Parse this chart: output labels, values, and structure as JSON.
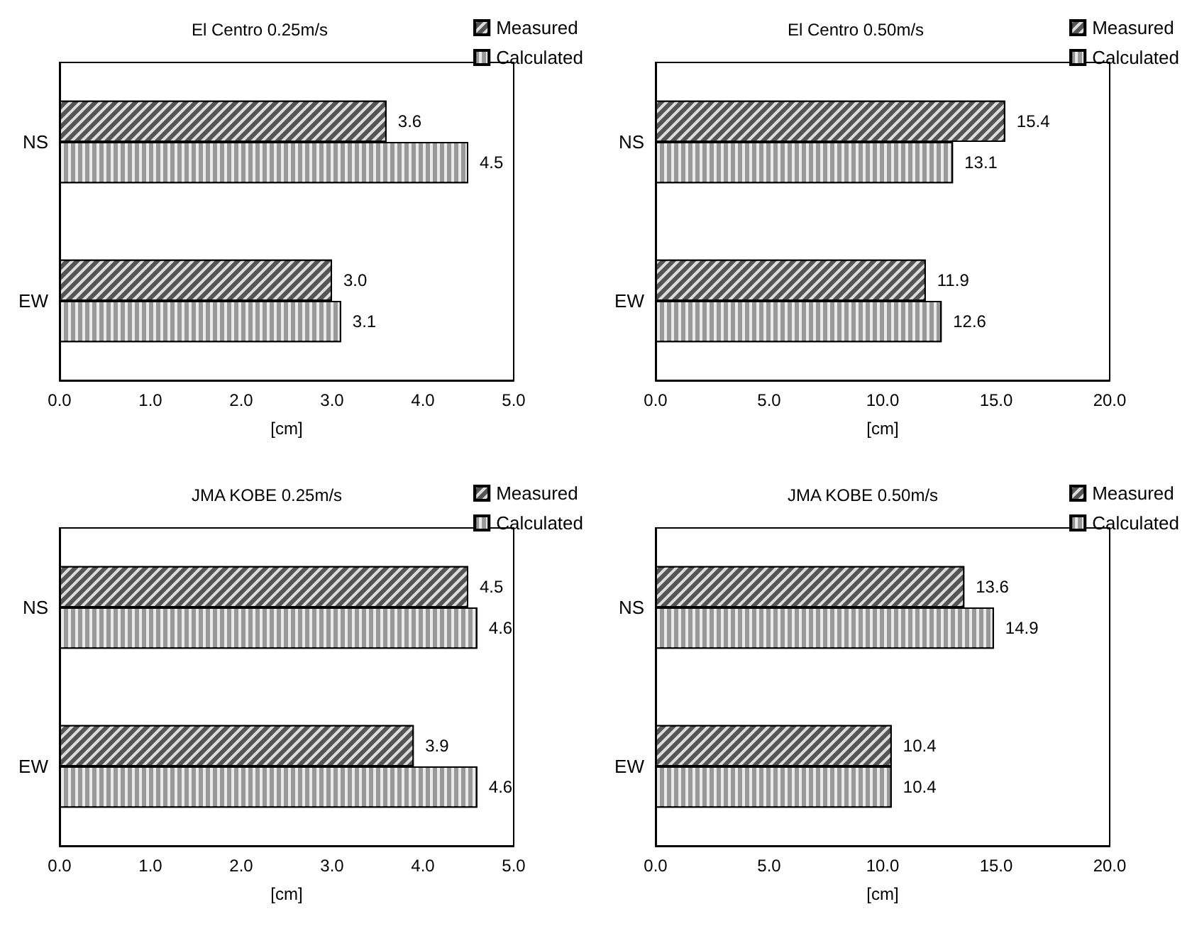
{
  "chart_data": [
    {
      "type": "bar",
      "orientation": "horizontal",
      "title": "El Centro 0.25m/s",
      "xlabel": "[cm]",
      "categories": [
        "NS",
        "EW"
      ],
      "xlim": [
        0,
        5
      ],
      "xticks": [
        {
          "value": 0,
          "label": "0.0"
        },
        {
          "value": 1,
          "label": "1.0"
        },
        {
          "value": 2,
          "label": "2.0"
        },
        {
          "value": 3,
          "label": "3.0"
        },
        {
          "value": 4,
          "label": "4.0"
        },
        {
          "value": 5,
          "label": "5.0"
        }
      ],
      "legend": "top right",
      "grid": false,
      "series": [
        {
          "name": "Measured",
          "color": "#555555",
          "values": [
            3.6,
            3.0
          ],
          "value_labels": [
            "3.6",
            "3.0"
          ]
        },
        {
          "name": "Calculated",
          "color": "#999999",
          "values": [
            4.5,
            3.1
          ],
          "value_labels": [
            "4.5",
            "3.1"
          ]
        }
      ]
    },
    {
      "type": "bar",
      "orientation": "horizontal",
      "title": "El Centro 0.50m/s",
      "xlabel": "[cm]",
      "categories": [
        "NS",
        "EW"
      ],
      "xlim": [
        0,
        20
      ],
      "xticks": [
        {
          "value": 0,
          "label": "0.0"
        },
        {
          "value": 5,
          "label": "5.0"
        },
        {
          "value": 10,
          "label": "10.0"
        },
        {
          "value": 15,
          "label": "15.0"
        },
        {
          "value": 20,
          "label": "20.0"
        }
      ],
      "legend": "top right",
      "grid": false,
      "series": [
        {
          "name": "Measured",
          "color": "#555555",
          "values": [
            15.4,
            11.9
          ],
          "value_labels": [
            "15.4",
            "11.9"
          ]
        },
        {
          "name": "Calculated",
          "color": "#999999",
          "values": [
            13.1,
            12.6
          ],
          "value_labels": [
            "13.1",
            "12.6"
          ]
        }
      ]
    },
    {
      "type": "bar",
      "orientation": "horizontal",
      "title": "JMA KOBE 0.25m/s",
      "xlabel": "[cm]",
      "categories": [
        "NS",
        "EW"
      ],
      "xlim": [
        0,
        5
      ],
      "xticks": [
        {
          "value": 0,
          "label": "0.0"
        },
        {
          "value": 1,
          "label": "1.0"
        },
        {
          "value": 2,
          "label": "2.0"
        },
        {
          "value": 3,
          "label": "3.0"
        },
        {
          "value": 4,
          "label": "4.0"
        },
        {
          "value": 5,
          "label": "5.0"
        }
      ],
      "legend": "top right",
      "grid": false,
      "series": [
        {
          "name": "Measured",
          "color": "#555555",
          "values": [
            4.5,
            3.9
          ],
          "value_labels": [
            "4.5",
            "3.9"
          ]
        },
        {
          "name": "Calculated",
          "color": "#999999",
          "values": [
            4.6,
            4.6
          ],
          "value_labels": [
            "4.6",
            "4.6"
          ]
        }
      ]
    },
    {
      "type": "bar",
      "orientation": "horizontal",
      "title": "JMA KOBE 0.50m/s",
      "xlabel": "[cm]",
      "categories": [
        "NS",
        "EW"
      ],
      "xlim": [
        0,
        20
      ],
      "xticks": [
        {
          "value": 0,
          "label": "0.0"
        },
        {
          "value": 5,
          "label": "5.0"
        },
        {
          "value": 10,
          "label": "10.0"
        },
        {
          "value": 15,
          "label": "15.0"
        },
        {
          "value": 20,
          "label": "20.0"
        }
      ],
      "legend": "top right",
      "grid": false,
      "series": [
        {
          "name": "Measured",
          "color": "#555555",
          "values": [
            13.6,
            10.4
          ],
          "value_labels": [
            "13.6",
            "10.4"
          ]
        },
        {
          "name": "Calculated",
          "color": "#999999",
          "values": [
            14.9,
            10.4
          ],
          "value_labels": [
            "14.9",
            "10.4"
          ]
        }
      ]
    }
  ]
}
